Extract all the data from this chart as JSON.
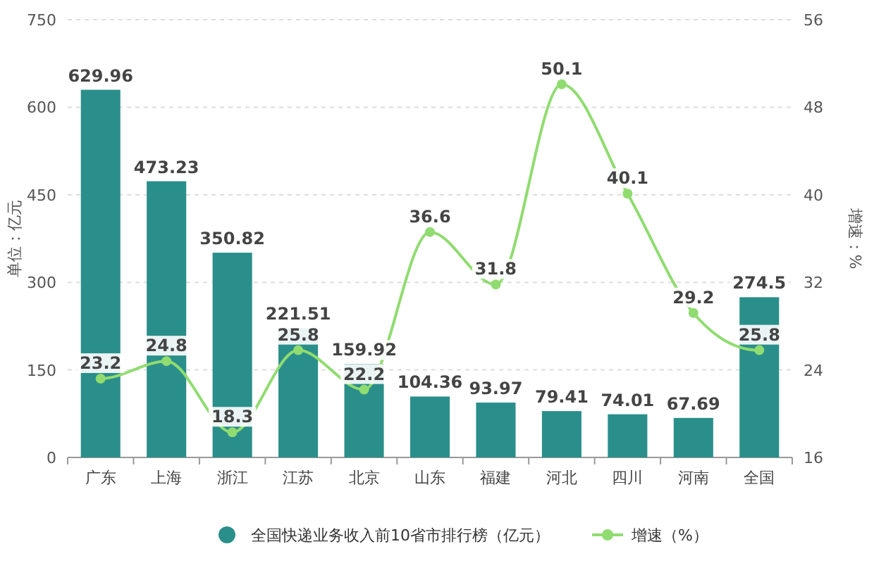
{
  "chart_data": {
    "type": "bar",
    "categories": [
      "广东",
      "上海",
      "浙江",
      "江苏",
      "北京",
      "山东",
      "福建",
      "河北",
      "四川",
      "河南",
      "全国"
    ],
    "series": [
      {
        "name": "全国快递业务收入前10省市排行榜（亿元）",
        "color": "#2a8f8a",
        "values": [
          629.96,
          473.23,
          350.82,
          221.51,
          159.92,
          104.36,
          93.97,
          79.41,
          74.01,
          67.69,
          274.5
        ]
      },
      {
        "name": "增速（%）",
        "type": "line",
        "axis": "y2",
        "color": "#90dc70",
        "marker": "circle",
        "line_style": "solid",
        "values": [
          23.2,
          24.8,
          18.3,
          25.8,
          22.2,
          36.6,
          31.8,
          50.1,
          40.1,
          29.2,
          25.8
        ]
      }
    ],
    "ylabel": "单位：亿元",
    "y2label": "增速：%",
    "ylim": [
      0,
      750
    ],
    "yticks": [
      0,
      150,
      300,
      450,
      600,
      750
    ],
    "y2lim": [
      16,
      56
    ],
    "y2ticks": [
      16,
      24,
      32,
      40,
      48,
      56
    ],
    "data_labels": true,
    "legend": "bottom",
    "grid": "y"
  }
}
